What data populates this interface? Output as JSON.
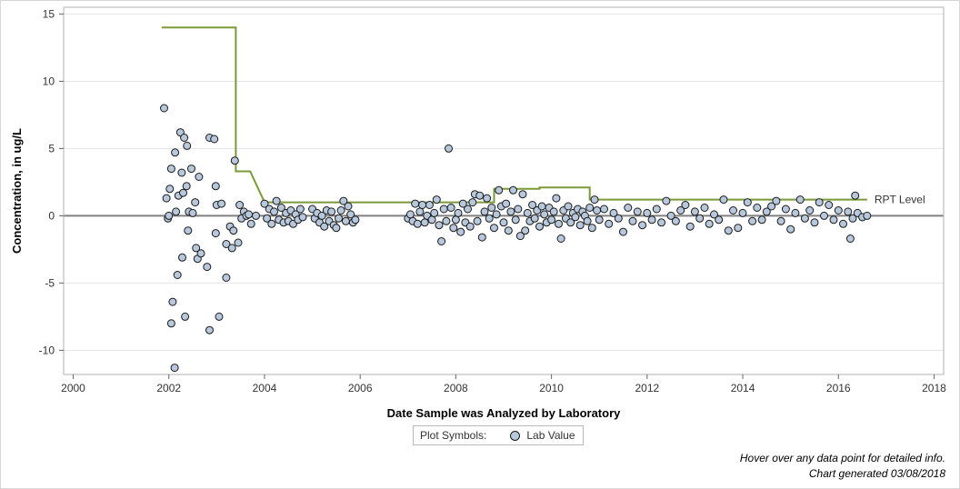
{
  "chart_data": {
    "type": "scatter",
    "xlabel": "Date Sample was Analyzed by Laboratory",
    "ylabel": "Concentration, in ug/L",
    "xlim": [
      1999.8,
      2018.2
    ],
    "ylim": [
      -11.8,
      15.5
    ],
    "x_ticks": [
      2000,
      2002,
      2004,
      2006,
      2008,
      2010,
      2012,
      2014,
      2016,
      2018
    ],
    "y_ticks": [
      -10,
      -5,
      0,
      5,
      10,
      15
    ],
    "zero_line": 0,
    "grid": "horizontal",
    "series": [
      {
        "name": "Lab Value",
        "marker": "circle",
        "color": "#b8c8dc",
        "edge_color": "#1a1a1a",
        "points": [
          [
            2001.9,
            8.0
          ],
          [
            2001.95,
            1.3
          ],
          [
            2001.98,
            -0.2
          ],
          [
            2002.0,
            0.0
          ],
          [
            2002.02,
            2.0
          ],
          [
            2002.05,
            3.5
          ],
          [
            2002.08,
            -6.4
          ],
          [
            2002.05,
            -8.0
          ],
          [
            2002.12,
            -11.3
          ],
          [
            2002.13,
            4.7
          ],
          [
            2002.15,
            0.3
          ],
          [
            2002.18,
            -4.4
          ],
          [
            2002.2,
            1.5
          ],
          [
            2002.24,
            6.2
          ],
          [
            2002.27,
            3.2
          ],
          [
            2002.28,
            -3.1
          ],
          [
            2002.3,
            1.7
          ],
          [
            2002.32,
            5.8
          ],
          [
            2002.34,
            -7.5
          ],
          [
            2002.37,
            2.2
          ],
          [
            2002.38,
            5.2
          ],
          [
            2002.4,
            -1.1
          ],
          [
            2002.42,
            0.3
          ],
          [
            2002.47,
            3.5
          ],
          [
            2002.5,
            0.2
          ],
          [
            2002.55,
            1.0
          ],
          [
            2002.57,
            -2.4
          ],
          [
            2002.6,
            -3.2
          ],
          [
            2002.63,
            2.9
          ],
          [
            2002.67,
            -2.8
          ],
          [
            2002.8,
            -3.8
          ],
          [
            2002.85,
            5.8
          ],
          [
            2002.85,
            -8.5
          ],
          [
            2002.95,
            5.7
          ],
          [
            2002.98,
            2.2
          ],
          [
            2002.98,
            -1.3
          ],
          [
            2003.0,
            0.8
          ],
          [
            2003.05,
            -7.5
          ],
          [
            2003.1,
            0.9
          ],
          [
            2003.2,
            -4.6
          ],
          [
            2003.2,
            -2.1
          ],
          [
            2003.28,
            -0.8
          ],
          [
            2003.32,
            -2.4
          ],
          [
            2003.35,
            -1.1
          ],
          [
            2003.38,
            4.1
          ],
          [
            2003.45,
            -2.0
          ],
          [
            2003.48,
            0.8
          ],
          [
            2003.52,
            -0.2
          ],
          [
            2003.57,
            0.3
          ],
          [
            2003.62,
            0.0
          ],
          [
            2003.67,
            0.1
          ],
          [
            2003.72,
            -0.6
          ],
          [
            2003.82,
            0.0
          ],
          [
            2004.0,
            0.9
          ],
          [
            2004.05,
            -0.2
          ],
          [
            2004.1,
            0.5
          ],
          [
            2004.15,
            -0.6
          ],
          [
            2004.2,
            0.3
          ],
          [
            2004.25,
            1.1
          ],
          [
            2004.3,
            -0.3
          ],
          [
            2004.35,
            0.6
          ],
          [
            2004.4,
            -0.5
          ],
          [
            2004.45,
            0.2
          ],
          [
            2004.5,
            -0.4
          ],
          [
            2004.55,
            0.4
          ],
          [
            2004.6,
            -0.6
          ],
          [
            2004.65,
            0.1
          ],
          [
            2004.7,
            -0.3
          ],
          [
            2004.75,
            0.5
          ],
          [
            2004.8,
            -0.1
          ],
          [
            2005.0,
            0.5
          ],
          [
            2005.05,
            -0.2
          ],
          [
            2005.1,
            0.2
          ],
          [
            2005.15,
            -0.5
          ],
          [
            2005.2,
            0.0
          ],
          [
            2005.25,
            -0.8
          ],
          [
            2005.3,
            0.4
          ],
          [
            2005.35,
            -0.4
          ],
          [
            2005.4,
            0.3
          ],
          [
            2005.45,
            -0.7
          ],
          [
            2005.5,
            -0.9
          ],
          [
            2005.55,
            -0.2
          ],
          [
            2005.6,
            0.4
          ],
          [
            2005.65,
            1.1
          ],
          [
            2005.7,
            -0.4
          ],
          [
            2005.75,
            0.7
          ],
          [
            2005.8,
            0.1
          ],
          [
            2005.85,
            -0.5
          ],
          [
            2005.9,
            -0.3
          ],
          [
            2007.0,
            -0.2
          ],
          [
            2007.05,
            0.1
          ],
          [
            2007.1,
            -0.4
          ],
          [
            2007.15,
            0.9
          ],
          [
            2007.2,
            -0.6
          ],
          [
            2007.25,
            0.3
          ],
          [
            2007.3,
            0.8
          ],
          [
            2007.35,
            -0.5
          ],
          [
            2007.4,
            0.0
          ],
          [
            2007.45,
            0.8
          ],
          [
            2007.5,
            -0.3
          ],
          [
            2007.55,
            0.2
          ],
          [
            2007.6,
            1.2
          ],
          [
            2007.65,
            -0.7
          ],
          [
            2007.7,
            -1.9
          ],
          [
            2007.75,
            0.5
          ],
          [
            2007.8,
            -0.4
          ],
          [
            2007.85,
            5.0
          ],
          [
            2007.9,
            0.6
          ],
          [
            2007.95,
            -0.9
          ],
          [
            2008.0,
            -0.3
          ],
          [
            2008.05,
            0.2
          ],
          [
            2008.1,
            -1.2
          ],
          [
            2008.15,
            0.9
          ],
          [
            2008.2,
            -0.5
          ],
          [
            2008.25,
            0.5
          ],
          [
            2008.3,
            -0.8
          ],
          [
            2008.35,
            1.0
          ],
          [
            2008.4,
            1.6
          ],
          [
            2008.45,
            -0.4
          ],
          [
            2008.5,
            1.5
          ],
          [
            2008.55,
            -1.6
          ],
          [
            2008.6,
            0.3
          ],
          [
            2008.65,
            1.3
          ],
          [
            2008.7,
            -0.2
          ],
          [
            2008.75,
            0.6
          ],
          [
            2008.8,
            -0.9
          ],
          [
            2008.85,
            0.1
          ],
          [
            2008.9,
            1.9
          ],
          [
            2008.95,
            0.7
          ],
          [
            2009.0,
            -0.5
          ],
          [
            2009.05,
            0.9
          ],
          [
            2009.1,
            -1.1
          ],
          [
            2009.15,
            0.3
          ],
          [
            2009.2,
            1.9
          ],
          [
            2009.25,
            -0.3
          ],
          [
            2009.3,
            0.5
          ],
          [
            2009.35,
            -1.5
          ],
          [
            2009.4,
            1.6
          ],
          [
            2009.45,
            -1.1
          ],
          [
            2009.5,
            0.2
          ],
          [
            2009.55,
            -0.4
          ],
          [
            2009.6,
            0.8
          ],
          [
            2009.65,
            -0.2
          ],
          [
            2009.7,
            0.4
          ],
          [
            2009.75,
            -0.8
          ],
          [
            2009.8,
            0.7
          ],
          [
            2009.85,
            0.1
          ],
          [
            2009.9,
            -0.5
          ],
          [
            2009.95,
            0.6
          ],
          [
            2010.0,
            -0.3
          ],
          [
            2010.05,
            0.3
          ],
          [
            2010.1,
            1.3
          ],
          [
            2010.15,
            -0.6
          ],
          [
            2010.2,
            -1.7
          ],
          [
            2010.25,
            0.4
          ],
          [
            2010.3,
            -0.2
          ],
          [
            2010.35,
            0.7
          ],
          [
            2010.4,
            -0.5
          ],
          [
            2010.45,
            0.2
          ],
          [
            2010.5,
            -0.1
          ],
          [
            2010.55,
            0.5
          ],
          [
            2010.6,
            -0.7
          ],
          [
            2010.65,
            0.3
          ],
          [
            2010.7,
            0.0
          ],
          [
            2010.75,
            -0.4
          ],
          [
            2010.8,
            0.6
          ],
          [
            2010.85,
            -0.9
          ],
          [
            2010.9,
            1.2
          ],
          [
            2010.95,
            0.4
          ],
          [
            2011.0,
            -0.3
          ],
          [
            2011.1,
            0.5
          ],
          [
            2011.2,
            -0.6
          ],
          [
            2011.3,
            0.2
          ],
          [
            2011.4,
            -0.2
          ],
          [
            2011.5,
            -1.2
          ],
          [
            2011.6,
            0.6
          ],
          [
            2011.7,
            -0.4
          ],
          [
            2011.8,
            0.3
          ],
          [
            2011.9,
            -0.7
          ],
          [
            2012.0,
            0.2
          ],
          [
            2012.1,
            -0.3
          ],
          [
            2012.2,
            0.5
          ],
          [
            2012.3,
            -0.5
          ],
          [
            2012.4,
            1.1
          ],
          [
            2012.5,
            0.0
          ],
          [
            2012.6,
            -0.4
          ],
          [
            2012.7,
            0.4
          ],
          [
            2012.8,
            0.8
          ],
          [
            2012.9,
            -0.8
          ],
          [
            2013.0,
            0.3
          ],
          [
            2013.1,
            -0.2
          ],
          [
            2013.2,
            0.6
          ],
          [
            2013.3,
            -0.6
          ],
          [
            2013.4,
            0.1
          ],
          [
            2013.5,
            -0.3
          ],
          [
            2013.6,
            1.2
          ],
          [
            2013.7,
            -1.1
          ],
          [
            2013.8,
            0.4
          ],
          [
            2013.9,
            -0.9
          ],
          [
            2014.0,
            0.2
          ],
          [
            2014.1,
            1.0
          ],
          [
            2014.2,
            -0.4
          ],
          [
            2014.3,
            0.6
          ],
          [
            2014.4,
            -0.3
          ],
          [
            2014.5,
            0.3
          ],
          [
            2014.6,
            0.7
          ],
          [
            2014.7,
            1.1
          ],
          [
            2014.8,
            -0.4
          ],
          [
            2014.9,
            0.5
          ],
          [
            2015.0,
            -1.0
          ],
          [
            2015.1,
            0.2
          ],
          [
            2015.2,
            1.2
          ],
          [
            2015.3,
            -0.2
          ],
          [
            2015.4,
            0.4
          ],
          [
            2015.5,
            -0.5
          ],
          [
            2015.6,
            1.0
          ],
          [
            2015.7,
            0.0
          ],
          [
            2015.8,
            0.8
          ],
          [
            2015.9,
            -0.3
          ],
          [
            2016.0,
            0.4
          ],
          [
            2016.1,
            -0.6
          ],
          [
            2016.2,
            0.3
          ],
          [
            2016.25,
            -1.7
          ],
          [
            2016.3,
            -0.2
          ],
          [
            2016.35,
            1.5
          ],
          [
            2016.4,
            0.2
          ],
          [
            2016.5,
            -0.1
          ],
          [
            2016.6,
            0.0
          ]
        ]
      },
      {
        "name": "RPT Level",
        "type": "step-line",
        "color": "#7a9a3a",
        "points": [
          [
            2001.85,
            14.0
          ],
          [
            2003.4,
            14.0
          ],
          [
            2003.4,
            3.3
          ],
          [
            2003.7,
            3.3
          ],
          [
            2004.0,
            1.0
          ],
          [
            2006.0,
            1.0
          ],
          [
            2008.8,
            1.0
          ],
          [
            2008.8,
            2.0
          ],
          [
            2009.75,
            2.0
          ],
          [
            2009.75,
            2.1
          ],
          [
            2010.8,
            2.1
          ],
          [
            2010.8,
            1.2
          ],
          [
            2016.6,
            1.2
          ]
        ]
      }
    ],
    "ref_label": "RPT Level"
  },
  "legend": {
    "title": "Plot Symbols:",
    "entries": [
      "Lab Value"
    ]
  },
  "footnotes": {
    "hover": "Hover over any data point for detailed info.",
    "generated": "Chart generated 03/08/2018"
  }
}
